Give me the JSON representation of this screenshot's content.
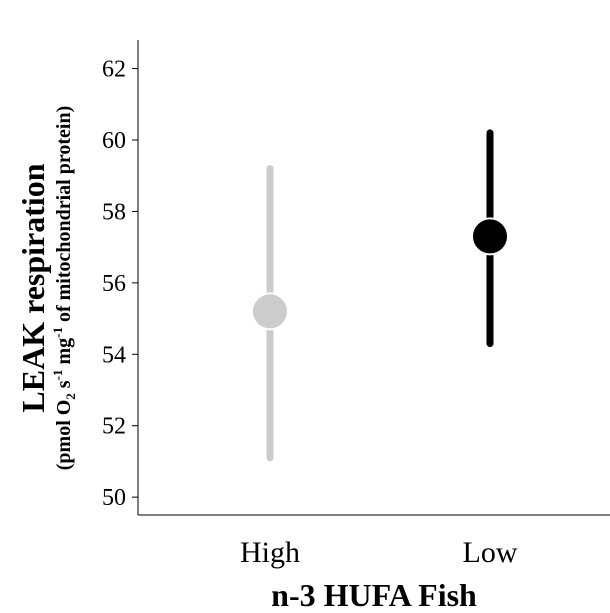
{
  "chart_data": {
    "type": "scatter",
    "title": "",
    "xlabel": "n-3 HUFA Fish",
    "ylabel": "LEAK respiration",
    "ylabel_sub": {
      "pre": "(pmol O",
      "sub_o2": "2",
      "mid1": " s",
      "sup_s": "-1",
      "mid2": " mg",
      "sup_mg": "-1",
      "post": " of mitochondrial protein)"
    },
    "categories": [
      "High",
      "Low"
    ],
    "ylim": [
      49.5,
      62.8
    ],
    "yticks": [
      50,
      52,
      54,
      56,
      58,
      60,
      62
    ],
    "series": [
      {
        "category": "High",
        "mean": 55.2,
        "lower": 51.1,
        "upper": 59.2,
        "color": "#cccccc"
      },
      {
        "category": "Low",
        "mean": 57.3,
        "lower": 54.3,
        "upper": 60.2,
        "color": "#000000"
      }
    ],
    "grid": false,
    "legend": "none"
  }
}
